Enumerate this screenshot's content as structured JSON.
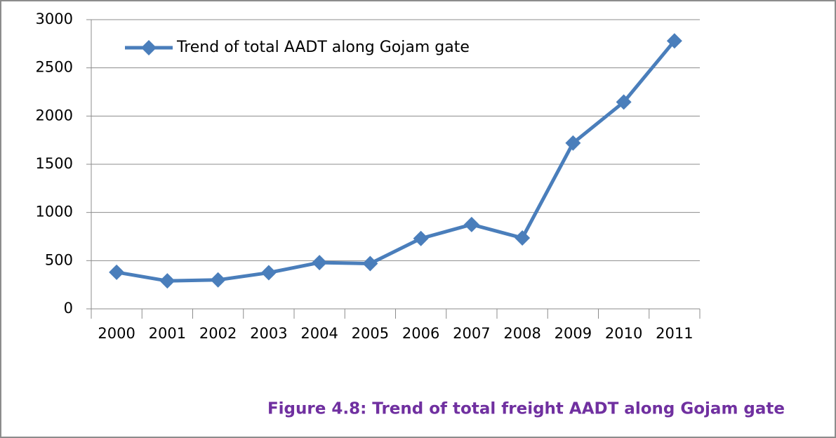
{
  "chart_data": {
    "type": "line",
    "caption": "Figure 4.8: Trend of total freight AADT along Gojam gate",
    "categories": [
      "2000",
      "2001",
      "2002",
      "2003",
      "2004",
      "2005",
      "2006",
      "2007",
      "2008",
      "2009",
      "2010",
      "2011"
    ],
    "series": [
      {
        "name": "Trend of total AADT along Gojam gate",
        "color": "#4a7ebb",
        "values": [
          380,
          290,
          300,
          375,
          480,
          470,
          730,
          875,
          735,
          1720,
          2145,
          2780
        ]
      }
    ],
    "ylim": [
      0,
      3000
    ],
    "yticks": [
      0,
      500,
      1000,
      1500,
      2000,
      2500,
      3000
    ],
    "grid": true,
    "legend": "top-left"
  }
}
